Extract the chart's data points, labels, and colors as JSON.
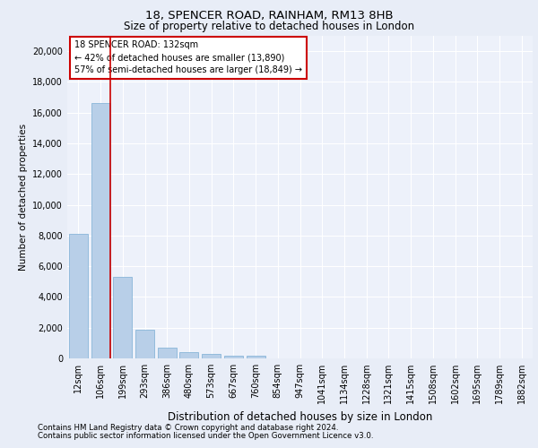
{
  "title1": "18, SPENCER ROAD, RAINHAM, RM13 8HB",
  "title2": "Size of property relative to detached houses in London",
  "xlabel": "Distribution of detached houses by size in London",
  "ylabel": "Number of detached properties",
  "annotation_line1": "18 SPENCER ROAD: 132sqm",
  "annotation_line2": "← 42% of detached houses are smaller (13,890)",
  "annotation_line3": "57% of semi-detached houses are larger (18,849) →",
  "bar_color": "#b8cfe8",
  "bar_edge_color": "#7aadd4",
  "vline_color": "#cc0000",
  "annotation_box_color": "#cc0000",
  "categories": [
    "12sqm",
    "106sqm",
    "199sqm",
    "293sqm",
    "386sqm",
    "480sqm",
    "573sqm",
    "667sqm",
    "760sqm",
    "854sqm",
    "947sqm",
    "1041sqm",
    "1134sqm",
    "1228sqm",
    "1321sqm",
    "1415sqm",
    "1508sqm",
    "1602sqm",
    "1695sqm",
    "1789sqm",
    "1882sqm"
  ],
  "values": [
    8100,
    16600,
    5300,
    1850,
    700,
    380,
    280,
    200,
    175,
    0,
    0,
    0,
    0,
    0,
    0,
    0,
    0,
    0,
    0,
    0,
    0
  ],
  "ylim": [
    0,
    21000
  ],
  "yticks": [
    0,
    2000,
    4000,
    6000,
    8000,
    10000,
    12000,
    14000,
    16000,
    18000,
    20000
  ],
  "footnote1": "Contains HM Land Registry data © Crown copyright and database right 2024.",
  "footnote2": "Contains public sector information licensed under the Open Government Licence v3.0.",
  "background_color": "#e8edf7",
  "plot_bg_color": "#edf1fa"
}
